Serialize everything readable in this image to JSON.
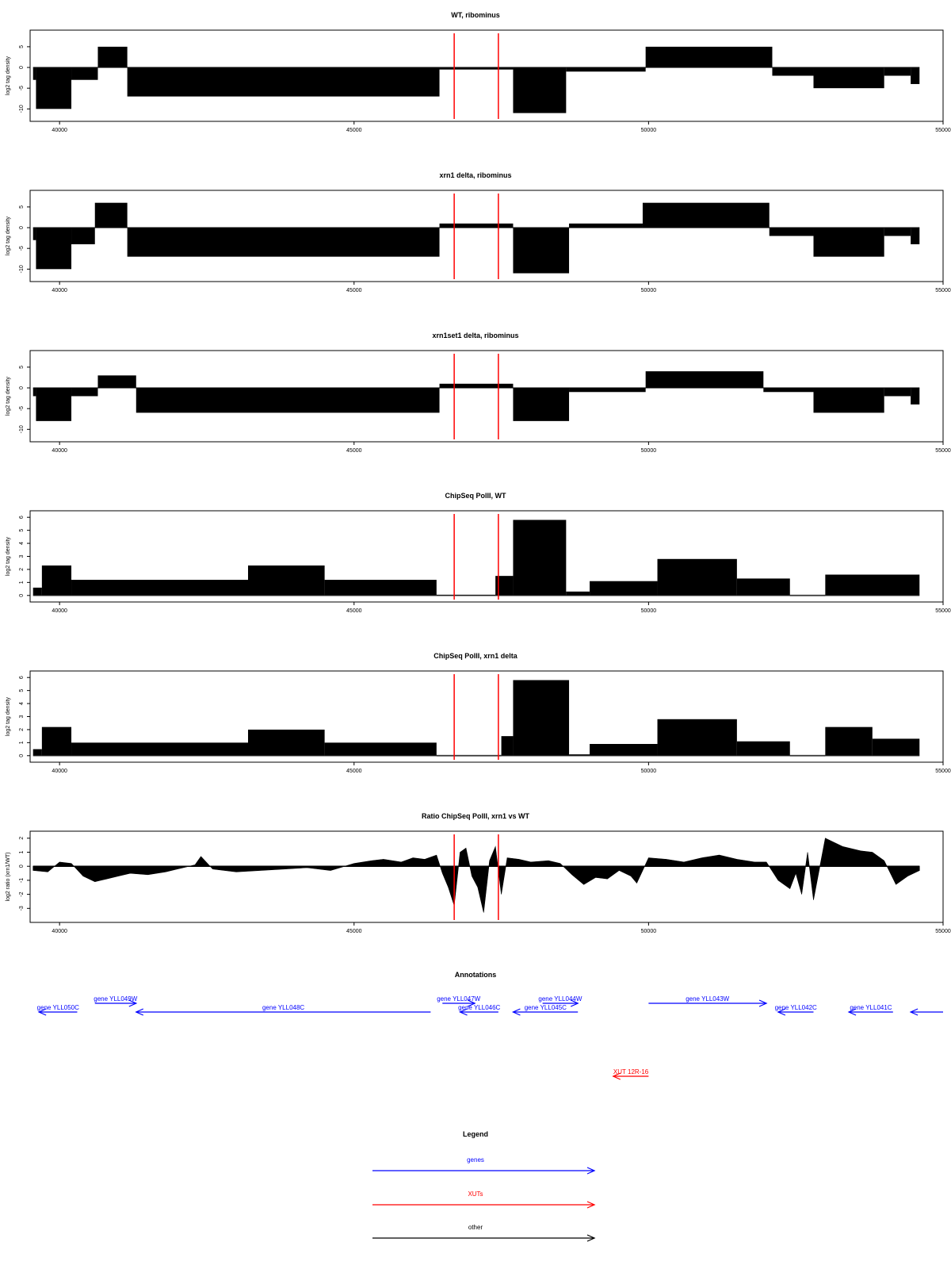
{
  "chart_data": [
    {
      "type": "bar",
      "title": "WT, ribominus",
      "ylabel": "log2 tag density",
      "xlim": [
        39500,
        55000
      ],
      "ylim": [
        -13,
        9
      ],
      "xticks": [
        40000,
        45000,
        50000,
        55000
      ],
      "yticks": [
        -10,
        -5,
        0,
        5
      ],
      "ytick_labels": [
        "-10",
        "-5",
        "0",
        "5"
      ],
      "markers": [
        46700,
        47450
      ],
      "segments": [
        {
          "from": 39550,
          "to": 39600,
          "value": -3
        },
        {
          "from": 39600,
          "to": 40200,
          "value": -10
        },
        {
          "from": 40200,
          "to": 40650,
          "value": -3
        },
        {
          "from": 40650,
          "to": 41150,
          "value": 5
        },
        {
          "from": 41150,
          "to": 46450,
          "value": -7
        },
        {
          "from": 46450,
          "to": 47700,
          "value": -0.5
        },
        {
          "from": 47700,
          "to": 48600,
          "value": -11
        },
        {
          "from": 48600,
          "to": 49950,
          "value": -1
        },
        {
          "from": 49950,
          "to": 52100,
          "value": 5
        },
        {
          "from": 52100,
          "to": 52800,
          "value": -2
        },
        {
          "from": 52800,
          "to": 54000,
          "value": -5
        },
        {
          "from": 54000,
          "to": 54450,
          "value": -2
        },
        {
          "from": 54450,
          "to": 54600,
          "value": -4
        }
      ]
    },
    {
      "type": "bar",
      "title": "xrn1 delta, ribominus",
      "ylabel": "log2 tag density",
      "xlim": [
        39500,
        55000
      ],
      "ylim": [
        -13,
        9
      ],
      "xticks": [
        40000,
        45000,
        50000,
        55000
      ],
      "yticks": [
        -10,
        -5,
        0,
        5
      ],
      "ytick_labels": [
        "-10",
        "-5",
        "0",
        "5"
      ],
      "markers": [
        46700,
        47450
      ],
      "segments": [
        {
          "from": 39550,
          "to": 39600,
          "value": -3
        },
        {
          "from": 39600,
          "to": 40200,
          "value": -10
        },
        {
          "from": 40200,
          "to": 40600,
          "value": -4
        },
        {
          "from": 40600,
          "to": 41150,
          "value": 6
        },
        {
          "from": 41150,
          "to": 46450,
          "value": -7
        },
        {
          "from": 46450,
          "to": 47700,
          "value": 1
        },
        {
          "from": 47700,
          "to": 48650,
          "value": -11
        },
        {
          "from": 48650,
          "to": 49900,
          "value": 1
        },
        {
          "from": 49900,
          "to": 52050,
          "value": 6
        },
        {
          "from": 52050,
          "to": 52800,
          "value": -2
        },
        {
          "from": 52800,
          "to": 54000,
          "value": -7
        },
        {
          "from": 54000,
          "to": 54450,
          "value": -2
        },
        {
          "from": 54450,
          "to": 54600,
          "value": -4
        }
      ]
    },
    {
      "type": "bar",
      "title": "xrn1set1 delta, ribominus",
      "ylabel": "log2 tag density",
      "xlim": [
        39500,
        55000
      ],
      "ylim": [
        -13,
        9
      ],
      "xticks": [
        40000,
        45000,
        50000,
        55000
      ],
      "yticks": [
        -10,
        -5,
        0,
        5
      ],
      "ytick_labels": [
        "-10",
        "-5",
        "0",
        "5"
      ],
      "markers": [
        46700,
        47450
      ],
      "segments": [
        {
          "from": 39550,
          "to": 39600,
          "value": -2
        },
        {
          "from": 39600,
          "to": 40200,
          "value": -8
        },
        {
          "from": 40200,
          "to": 40650,
          "value": -2
        },
        {
          "from": 40650,
          "to": 41300,
          "value": 3
        },
        {
          "from": 41300,
          "to": 46450,
          "value": -6
        },
        {
          "from": 46450,
          "to": 47700,
          "value": 1
        },
        {
          "from": 47700,
          "to": 48650,
          "value": -8
        },
        {
          "from": 48650,
          "to": 49950,
          "value": -1
        },
        {
          "from": 49950,
          "to": 51950,
          "value": 4
        },
        {
          "from": 51950,
          "to": 52800,
          "value": -1
        },
        {
          "from": 52800,
          "to": 54000,
          "value": -6
        },
        {
          "from": 54000,
          "to": 54450,
          "value": -2
        },
        {
          "from": 54450,
          "to": 54600,
          "value": -4
        }
      ]
    },
    {
      "type": "bar",
      "title": "ChipSeq PolII, WT",
      "ylabel": "log2 tag density",
      "xlim": [
        39500,
        55000
      ],
      "ylim": [
        -0.5,
        6.5
      ],
      "xticks": [
        40000,
        45000,
        50000,
        55000
      ],
      "yticks": [
        0,
        1,
        2,
        3,
        4,
        5,
        6
      ],
      "ytick_labels": [
        "0",
        "1",
        "2",
        "3",
        "4",
        "5",
        "6"
      ],
      "markers": [
        46700,
        47450
      ],
      "segments": [
        {
          "from": 39550,
          "to": 39700,
          "value": 0.6
        },
        {
          "from": 39700,
          "to": 40200,
          "value": 2.3
        },
        {
          "from": 40200,
          "to": 43200,
          "value": 1.2
        },
        {
          "from": 43200,
          "to": 44500,
          "value": 2.3
        },
        {
          "from": 44500,
          "to": 46400,
          "value": 1.2
        },
        {
          "from": 46400,
          "to": 47400,
          "value": 0.05
        },
        {
          "from": 47400,
          "to": 47700,
          "value": 1.5
        },
        {
          "from": 47700,
          "to": 48600,
          "value": 5.8
        },
        {
          "from": 48600,
          "to": 49000,
          "value": 0.3
        },
        {
          "from": 49000,
          "to": 50150,
          "value": 1.1
        },
        {
          "from": 50150,
          "to": 51500,
          "value": 2.8
        },
        {
          "from": 51500,
          "to": 52400,
          "value": 1.3
        },
        {
          "from": 52400,
          "to": 53000,
          "value": 0.02
        },
        {
          "from": 53000,
          "to": 54600,
          "value": 1.6
        }
      ]
    },
    {
      "type": "bar",
      "title": "ChipSeq PolII, xrn1 delta",
      "ylabel": "log2 tag density",
      "xlim": [
        39500,
        55000
      ],
      "ylim": [
        -0.5,
        6.5
      ],
      "xticks": [
        40000,
        45000,
        50000,
        55000
      ],
      "yticks": [
        0,
        1,
        2,
        3,
        4,
        5,
        6
      ],
      "ytick_labels": [
        "0",
        "1",
        "2",
        "3",
        "4",
        "5",
        "6"
      ],
      "markers": [
        46700,
        47450
      ],
      "segments": [
        {
          "from": 39550,
          "to": 39700,
          "value": 0.5
        },
        {
          "from": 39700,
          "to": 40200,
          "value": 2.2
        },
        {
          "from": 40200,
          "to": 43200,
          "value": 1.0
        },
        {
          "from": 43200,
          "to": 44500,
          "value": 2.0
        },
        {
          "from": 44500,
          "to": 46400,
          "value": 1.0
        },
        {
          "from": 46400,
          "to": 47500,
          "value": 0.02
        },
        {
          "from": 47500,
          "to": 47700,
          "value": 1.5
        },
        {
          "from": 47700,
          "to": 48650,
          "value": 5.8
        },
        {
          "from": 48650,
          "to": 49000,
          "value": 0.1
        },
        {
          "from": 49000,
          "to": 50150,
          "value": 0.9
        },
        {
          "from": 50150,
          "to": 51500,
          "value": 2.8
        },
        {
          "from": 51500,
          "to": 52400,
          "value": 1.1
        },
        {
          "from": 52400,
          "to": 53000,
          "value": 0.02
        },
        {
          "from": 53000,
          "to": 53800,
          "value": 2.2
        },
        {
          "from": 53800,
          "to": 54600,
          "value": 1.3
        }
      ]
    },
    {
      "type": "area",
      "title": "Ratio ChipSeq PolII, xrn1 vs WT",
      "ylabel": "log2 ratio (xrn1/WT)",
      "xlim": [
        39500,
        55000
      ],
      "ylim": [
        -4,
        2.5
      ],
      "xticks": [
        40000,
        45000,
        50000,
        55000
      ],
      "yticks": [
        -3,
        -2,
        -1,
        0,
        1,
        2
      ],
      "ytick_labels": [
        "-3",
        "-2",
        "-1",
        "0",
        "1",
        "2"
      ],
      "markers": [
        46700,
        47450
      ],
      "x": [
        39550,
        39800,
        40000,
        40200,
        40400,
        40600,
        40800,
        41000,
        41200,
        41500,
        41800,
        42000,
        42300,
        42400,
        42600,
        43000,
        43400,
        43800,
        44200,
        44600,
        45000,
        45300,
        45500,
        45800,
        46000,
        46200,
        46400,
        46500,
        46600,
        46700,
        46800,
        46900,
        47000,
        47100,
        47200,
        47300,
        47400,
        47500,
        47600,
        47800,
        48000,
        48300,
        48500,
        48700,
        48900,
        49100,
        49300,
        49500,
        49700,
        49800,
        50000,
        50300,
        50600,
        50900,
        51200,
        51500,
        51800,
        52000,
        52200,
        52400,
        52500,
        52600,
        52700,
        52800,
        53000,
        53300,
        53600,
        53800,
        54000,
        54200,
        54400,
        54600
      ],
      "y": [
        -0.3,
        -0.4,
        0.3,
        0.2,
        -0.7,
        -1.1,
        -0.9,
        -0.7,
        -0.5,
        -0.6,
        -0.4,
        -0.2,
        0.1,
        0.7,
        -0.2,
        -0.4,
        -0.3,
        -0.2,
        -0.1,
        -0.3,
        0.2,
        0.4,
        0.5,
        0.3,
        0.6,
        0.5,
        0.8,
        -0.5,
        -1.5,
        -2.8,
        1.0,
        1.3,
        -0.7,
        -1.5,
        -3.3,
        0.4,
        1.4,
        -2.0,
        0.6,
        0.5,
        0.3,
        0.4,
        0.2,
        -0.6,
        -1.3,
        -0.8,
        -0.9,
        -0.3,
        -0.7,
        -1.2,
        0.6,
        0.5,
        0.3,
        0.6,
        0.8,
        0.5,
        0.3,
        0.3,
        -1.0,
        -1.6,
        -0.5,
        -2.0,
        1.0,
        -2.4,
        2.0,
        1.4,
        1.1,
        1.0,
        0.4,
        -1.3,
        -0.7,
        -0.3
      ]
    }
  ],
  "annotations": {
    "title": "Annotations",
    "xlim": [
      39500,
      55000
    ],
    "features": [
      {
        "label": "gene YLL050C",
        "kind": "gene",
        "strand": "-",
        "start": 39650,
        "end": 40300,
        "row": 1
      },
      {
        "label": "gene YLL049W",
        "kind": "gene",
        "strand": "+",
        "start": 40600,
        "end": 41300,
        "row": 0
      },
      {
        "label": "gene YLL048C",
        "kind": "gene",
        "strand": "-",
        "start": 41300,
        "end": 46300,
        "row": 1
      },
      {
        "label": "gene YLL047W",
        "kind": "gene",
        "strand": "+",
        "start": 46500,
        "end": 47050,
        "row": 0
      },
      {
        "label": "gene YLL046C",
        "kind": "gene",
        "strand": "-",
        "start": 46800,
        "end": 47450,
        "row": 1
      },
      {
        "label": "gene YLL045C",
        "kind": "gene",
        "strand": "-",
        "start": 47700,
        "end": 48800,
        "row": 1
      },
      {
        "label": "gene YLL044W",
        "kind": "gene",
        "strand": "+",
        "start": 48200,
        "end": 48800,
        "row": 0
      },
      {
        "label": "gene YLL043W",
        "kind": "gene",
        "strand": "+",
        "start": 50000,
        "end": 52000,
        "row": 0
      },
      {
        "label": "gene YLL042C",
        "kind": "gene",
        "strand": "-",
        "start": 52200,
        "end": 52800,
        "row": 1
      },
      {
        "label": "gene YLL041C",
        "kind": "gene",
        "strand": "-",
        "start": 53400,
        "end": 54150,
        "row": 1
      },
      {
        "label": "",
        "kind": "gene",
        "strand": "-",
        "start": 54450,
        "end": 55000,
        "row": 1
      },
      {
        "label": "XUT 12R-16",
        "kind": "xut",
        "strand": "-",
        "start": 49400,
        "end": 50000,
        "row": 2
      }
    ]
  },
  "legend": {
    "title": "Legend",
    "items": [
      {
        "label": "genes",
        "color": "#0000ff"
      },
      {
        "label": "XUTs",
        "color": "#ff0000"
      },
      {
        "label": "other",
        "color": "#000000"
      }
    ]
  },
  "colors": {
    "gene": "#0000ff",
    "xut": "#ff0000",
    "marker": "#ff0000",
    "baseline": "#7f7f7f",
    "data": "#000000"
  }
}
